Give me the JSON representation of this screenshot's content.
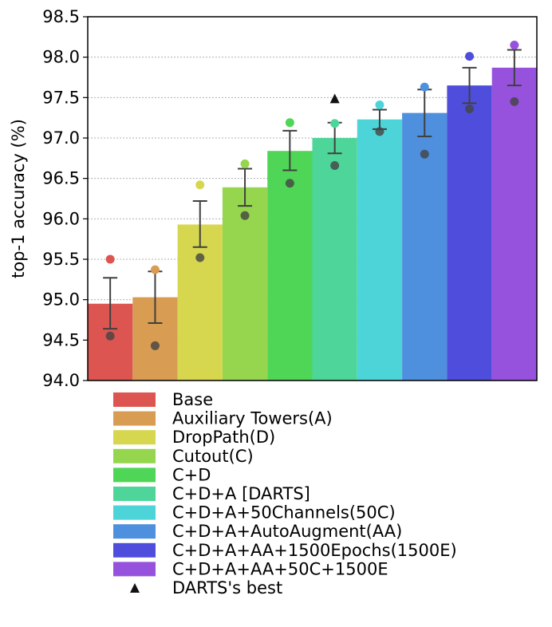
{
  "chart_data": {
    "type": "bar",
    "ylabel": "top-1 accuracy (%)",
    "xlabel": "",
    "ylim": [
      94.0,
      98.5
    ],
    "yticks": [
      "94.0",
      "94.5",
      "95.0",
      "95.5",
      "96.0",
      "96.5",
      "97.0",
      "97.5",
      "98.0",
      "98.5"
    ],
    "grid": "horizontal dotted",
    "legend_position": "bottom",
    "series": [
      {
        "name": "Base",
        "color": "#dc5551",
        "mean": 94.95,
        "err_low": 94.64,
        "err_high": 95.27,
        "max": 95.5,
        "min": 94.55
      },
      {
        "name": "Auxiliary Towers(A)",
        "color": "#d89c52",
        "mean": 95.03,
        "err_low": 94.71,
        "err_high": 95.35,
        "max": 95.37,
        "min": 94.43
      },
      {
        "name": "DropPath(D)",
        "color": "#d7d74f",
        "mean": 95.93,
        "err_low": 95.65,
        "err_high": 96.22,
        "max": 96.42,
        "min": 95.52
      },
      {
        "name": "Cutout(C)",
        "color": "#95d64e",
        "mean": 96.39,
        "err_low": 96.16,
        "err_high": 96.62,
        "max": 96.68,
        "min": 96.04
      },
      {
        "name": "C+D",
        "color": "#4fd657",
        "mean": 96.84,
        "err_low": 96.6,
        "err_high": 97.09,
        "max": 97.19,
        "min": 96.44
      },
      {
        "name": "C+D+A [DARTS]",
        "color": "#4ed69a",
        "mean": 97.0,
        "err_low": 96.81,
        "err_high": 97.19,
        "max": 97.18,
        "min": 96.66
      },
      {
        "name": "C+D+A+50Channels(50C)",
        "color": "#4dd4d8",
        "mean": 97.23,
        "err_low": 97.11,
        "err_high": 97.35,
        "max": 97.41,
        "min": 97.08
      },
      {
        "name": "C+D+A+AutoAugment(AA)",
        "color": "#4e8fde",
        "mean": 97.31,
        "err_low": 97.02,
        "err_high": 97.6,
        "max": 97.63,
        "min": 96.8
      },
      {
        "name": "C+D+A+AA+1500Epochs(1500E)",
        "color": "#4f4edc",
        "mean": 97.65,
        "err_low": 97.43,
        "err_high": 97.87,
        "max": 98.01,
        "min": 97.36
      },
      {
        "name": "C+D+A+AA+50C+1500E",
        "color": "#9652dc",
        "mean": 97.87,
        "err_low": 97.65,
        "err_high": 98.09,
        "max": 98.15,
        "min": 97.45
      }
    ],
    "markers": [
      {
        "name": "DARTS's best",
        "bar_index": 5,
        "value": 97.48,
        "shape": "triangle"
      }
    ]
  }
}
